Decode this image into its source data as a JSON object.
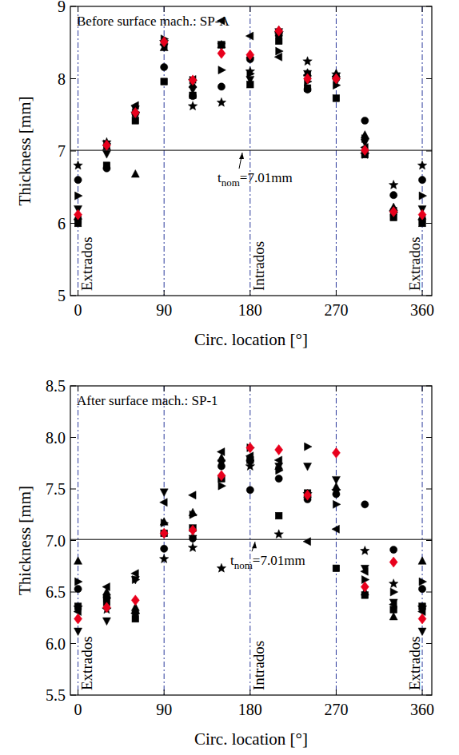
{
  "chart_data": [
    {
      "type": "scatter",
      "title": "Before surface mach.: SP-A",
      "x_label": "Circ. location [°]",
      "y_label": "Thickness [mm]",
      "xlim": [
        -8,
        370
      ],
      "xticks": [
        0,
        90,
        180,
        270,
        360
      ],
      "ylim": [
        5,
        9
      ],
      "yticks": [
        5,
        6,
        7,
        8,
        9
      ],
      "reference_x": [
        0,
        90,
        180,
        270,
        360
      ],
      "nominal": 7.01,
      "nominal_label": [
        "t",
        "nom",
        "=7.01mm"
      ],
      "region_labels": [
        {
          "text": "Extrados",
          "x": 0
        },
        {
          "text": "Intrados",
          "x": 180
        },
        {
          "text": "Extrados",
          "x": 360
        }
      ],
      "x": [
        0,
        30,
        60,
        90,
        120,
        150,
        180,
        210,
        240,
        270,
        300,
        330,
        360
      ],
      "series": [
        {
          "color": "#000000",
          "marker": "square",
          "values": [
            6.0,
            6.8,
            7.42,
            7.96,
            7.77,
            8.47,
            7.92,
            8.52,
            7.87,
            7.73,
            6.95,
            6.08,
            6.0
          ]
        },
        {
          "color": "#000000",
          "marker": "circle",
          "values": [
            6.6,
            6.76,
            7.52,
            8.16,
            7.76,
            7.89,
            8.27,
            8.6,
            7.85,
            8.02,
            7.42,
            6.39,
            6.6
          ]
        },
        {
          "color": "#000000",
          "marker": "triangle-up",
          "values": [
            6.1,
            7.06,
            6.68,
            8.43,
            7.92,
            8.47,
            8.33,
            8.67,
            8.08,
            8.07,
            7.22,
            6.22,
            6.1
          ]
        },
        {
          "color": "#000000",
          "marker": "triangle-down",
          "values": [
            6.2,
            6.96,
            7.58,
            8.44,
            7.85,
            8.45,
            7.99,
            8.65,
            8.07,
            7.96,
            7.12,
            6.13,
            6.2
          ]
        },
        {
          "color": "#000000",
          "marker": "triangle-left",
          "values": [
            6.05,
            7.08,
            7.63,
            8.47,
            7.99,
            8.8,
            8.59,
            8.3,
            8.05,
            8.03,
            7.05,
            6.17,
            6.05
          ]
        },
        {
          "color": "#000000",
          "marker": "triangle-right",
          "values": [
            6.38,
            7.1,
            7.53,
            8.55,
            7.98,
            8.12,
            8.07,
            8.38,
            7.96,
            7.91,
            7.17,
            6.15,
            6.38
          ]
        },
        {
          "color": "#000000",
          "marker": "star",
          "values": [
            6.8,
            7.12,
            7.52,
            8.51,
            7.62,
            7.67,
            8.1,
            8.63,
            8.24,
            8.06,
            6.95,
            6.53,
            6.8
          ]
        },
        {
          "color": "#e8001c",
          "marker": "diamond",
          "values": [
            6.12,
            7.08,
            7.53,
            8.51,
            7.98,
            8.35,
            8.33,
            8.66,
            8.0,
            8.0,
            7.01,
            6.16,
            6.12
          ]
        }
      ]
    },
    {
      "type": "scatter",
      "title": "After surface mach.: SP-1",
      "x_label": "Circ. location [°]",
      "y_label": "Thickness [mm]",
      "xlim": [
        -8,
        370
      ],
      "xticks": [
        0,
        90,
        180,
        270,
        360
      ],
      "ylim": [
        5.5,
        8.5
      ],
      "yticks": [
        5.5,
        {
          "value": 6,
          "label": "6.0"
        },
        6.5,
        {
          "value": 7,
          "label": "7.0"
        },
        7.5,
        {
          "value": 8,
          "label": "8.0"
        },
        8.5
      ],
      "reference_x": [
        0,
        90,
        180,
        270,
        360
      ],
      "nominal": 7.01,
      "nominal_label": [
        "t",
        "nom",
        "=7.01mm"
      ],
      "region_labels": [
        {
          "text": "Extrados",
          "x": 0
        },
        {
          "text": "Intrados",
          "x": 180
        },
        {
          "text": "Extrados",
          "x": 360
        }
      ],
      "x": [
        0,
        30,
        60,
        90,
        120,
        150,
        180,
        210,
        240,
        270,
        300,
        330,
        360
      ],
      "series": [
        {
          "color": "#000000",
          "marker": "square",
          "values": [
            6.36,
            6.4,
            6.24,
            7.07,
            7.12,
            7.6,
            7.78,
            7.24,
            7.46,
            6.73,
            6.47,
            6.33,
            6.36
          ]
        },
        {
          "color": "#000000",
          "marker": "circle",
          "values": [
            6.53,
            6.45,
            6.3,
            6.92,
            7.02,
            7.72,
            7.49,
            7.6,
            7.4,
            7.45,
            7.35,
            6.91,
            6.53
          ]
        },
        {
          "color": "#000000",
          "marker": "triangle-up",
          "values": [
            6.8,
            6.5,
            6.35,
            7.18,
            7.27,
            7.8,
            7.8,
            7.72,
            7.45,
            7.52,
            6.5,
            6.26,
            6.8
          ]
        },
        {
          "color": "#000000",
          "marker": "triangle-down",
          "values": [
            6.12,
            6.22,
            6.62,
            7.47,
            7.02,
            7.75,
            7.75,
            7.72,
            7.72,
            7.59,
            6.73,
            6.4,
            6.12
          ]
        },
        {
          "color": "#000000",
          "marker": "triangle-left",
          "values": [
            6.31,
            6.55,
            6.68,
            7.37,
            7.44,
            7.86,
            7.82,
            7.78,
            6.99,
            7.11,
            6.7,
            6.38,
            6.31
          ]
        },
        {
          "color": "#000000",
          "marker": "triangle-right",
          "values": [
            6.6,
            6.44,
            6.62,
            7.17,
            7.25,
            7.53,
            7.9,
            7.68,
            7.91,
            7.35,
            6.62,
            6.5,
            6.6
          ]
        },
        {
          "color": "#000000",
          "marker": "star",
          "values": [
            6.35,
            6.33,
            6.28,
            6.82,
            6.93,
            6.73,
            7.72,
            7.06,
            7.45,
            7.48,
            6.9,
            6.58,
            6.35
          ]
        },
        {
          "color": "#e8001c",
          "marker": "diamond",
          "values": [
            6.24,
            6.35,
            6.42,
            7.07,
            7.1,
            7.63,
            7.9,
            7.88,
            7.44,
            7.85,
            6.55,
            6.79,
            6.24
          ]
        }
      ]
    }
  ]
}
